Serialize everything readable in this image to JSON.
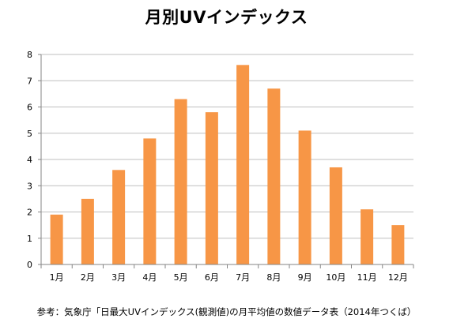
{
  "chart_data": {
    "type": "bar",
    "title": "月別UVインデックス",
    "categories": [
      "1月",
      "2月",
      "3月",
      "4月",
      "5月",
      "6月",
      "7月",
      "8月",
      "9月",
      "10月",
      "11月",
      "12月"
    ],
    "values": [
      1.9,
      2.5,
      3.6,
      4.8,
      6.3,
      5.8,
      7.6,
      6.7,
      5.1,
      3.7,
      2.1,
      1.5
    ],
    "ylim": [
      0,
      8
    ],
    "yticks": [
      0,
      1,
      2,
      3,
      4,
      5,
      6,
      7,
      8
    ],
    "grid": true,
    "legend": "none",
    "bar_color": "#F79646",
    "grid_color": "#BFBFBF",
    "axis_color": "#868686",
    "xlabel": "",
    "ylabel": "",
    "note": "参考：気象庁「日最大UVインデックス(観測値)の月平均値の数値データ表（2014年つくば）"
  }
}
